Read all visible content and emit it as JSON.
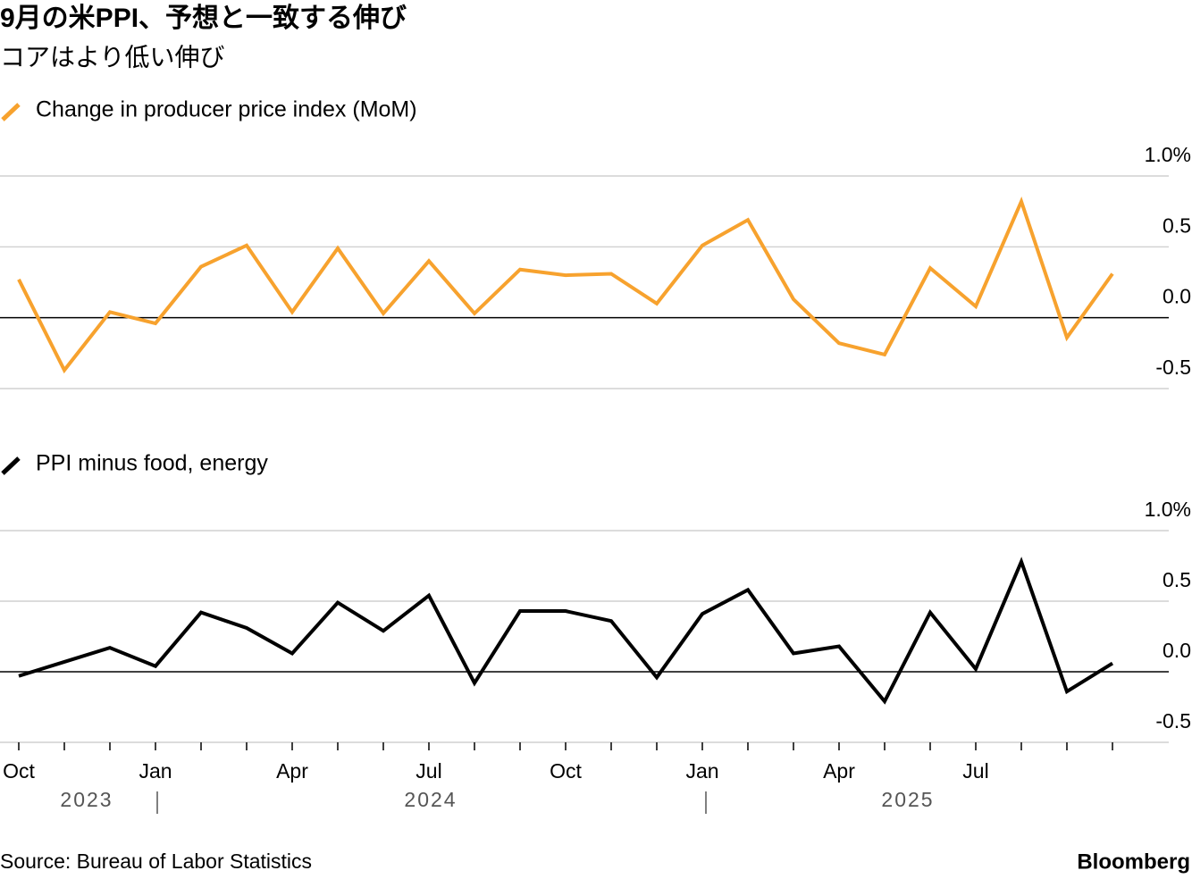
{
  "title": "9月の米PPI、予想と一致する伸び",
  "subtitle": "コアはより低い伸び",
  "source": "Source: Bureau of Labor Statistics",
  "brand": "Bloomberg",
  "chart_data": [
    {
      "type": "line",
      "series": [
        {
          "name": "Change in producer price index (MoM)",
          "color": "#f7a22e",
          "values": [
            0.27,
            -0.37,
            0.04,
            -0.04,
            0.36,
            0.51,
            0.04,
            0.49,
            0.03,
            0.4,
            0.03,
            0.34,
            0.3,
            0.31,
            0.1,
            0.51,
            0.69,
            0.13,
            -0.18,
            -0.26,
            0.35,
            0.08,
            0.82,
            -0.14,
            0.31
          ]
        }
      ],
      "ylim": [
        -0.5,
        1
      ],
      "yticks": [
        -0.5,
        {
          "value": 0,
          "label": "0.0"
        },
        0.5,
        {
          "value": 1,
          "label": "1.0%"
        }
      ]
    },
    {
      "type": "line",
      "categories": [
        "Oct",
        null,
        null,
        "Jan",
        null,
        null,
        "Apr",
        null,
        null,
        "Jul",
        null,
        null,
        "Oct",
        null,
        null,
        "Jan",
        null,
        null,
        "Apr",
        null,
        null,
        "Jul",
        null,
        null,
        null
      ],
      "years": [
        "2023",
        "2024",
        "2025"
      ],
      "series": [
        {
          "name": "PPI minus food, energy",
          "color": "#000000",
          "values": [
            -0.03,
            0.07,
            0.17,
            0.04,
            0.42,
            0.31,
            0.13,
            0.49,
            0.29,
            0.54,
            -0.08,
            0.43,
            0.43,
            0.36,
            -0.04,
            0.41,
            0.58,
            0.13,
            0.18,
            -0.21,
            0.42,
            0.02,
            0.78,
            -0.14,
            0.06
          ]
        }
      ],
      "ylim": [
        -0.5,
        1
      ],
      "yticks": [
        -0.5,
        {
          "value": 0,
          "label": "0.0"
        },
        0.5,
        {
          "value": 1,
          "label": "1.0%"
        }
      ]
    }
  ]
}
